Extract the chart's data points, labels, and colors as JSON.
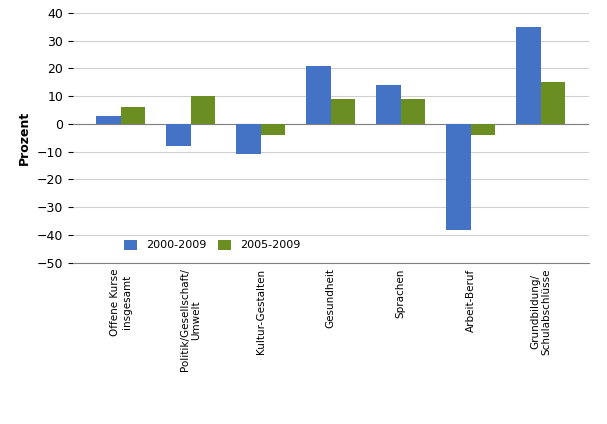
{
  "categories": [
    "Offene Kurse\ninsgesamt",
    "Politik/Gesellschaft/\nUmwelt",
    "Kultur-Gestalten",
    "Gesundheit",
    "Sprachen",
    "Arbeit-Beruf",
    "Grundbildung/\nSchulabschlüsse"
  ],
  "series_2000": [
    3,
    -8,
    -11,
    21,
    14,
    -38,
    35
  ],
  "series_2005": [
    6,
    10,
    -4,
    9,
    9,
    -4,
    15
  ],
  "color_2000": "#4472C4",
  "color_2005": "#6B8E23",
  "label_2000": "2000-2009",
  "label_2005": "2005-2009",
  "ylabel": "Prozent",
  "ylim": [
    -50,
    40
  ],
  "yticks": [
    -50,
    -40,
    -30,
    -20,
    -10,
    0,
    10,
    20,
    30,
    40
  ],
  "bar_width": 0.35,
  "figsize": [
    6.07,
    4.24
  ],
  "dpi": 100
}
